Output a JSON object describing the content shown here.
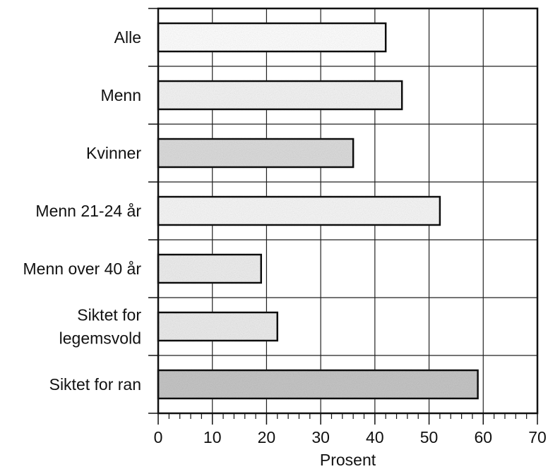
{
  "chart_data": {
    "type": "bar",
    "orientation": "horizontal",
    "categories": [
      [
        "Alle"
      ],
      [
        "Menn"
      ],
      [
        "Kvinner"
      ],
      [
        "Menn 21-24 år"
      ],
      [
        "Menn over 40 år"
      ],
      [
        "Siktet for",
        "legemsvold"
      ],
      [
        "Siktet for ran"
      ]
    ],
    "values": [
      42,
      45,
      36,
      52,
      19,
      22,
      59
    ],
    "xlabel": "Prosent",
    "ylabel": "",
    "title": "",
    "xlim": [
      0,
      70
    ],
    "xticks": [
      0,
      10,
      20,
      30,
      40,
      50,
      60,
      70
    ],
    "grid": true,
    "bar_colors": [
      "#ffffff",
      "#f4f4f4",
      "#dcdcdc",
      "#f7f7f7",
      "#eeeeee",
      "#ececec",
      "#c6c6c6"
    ]
  }
}
